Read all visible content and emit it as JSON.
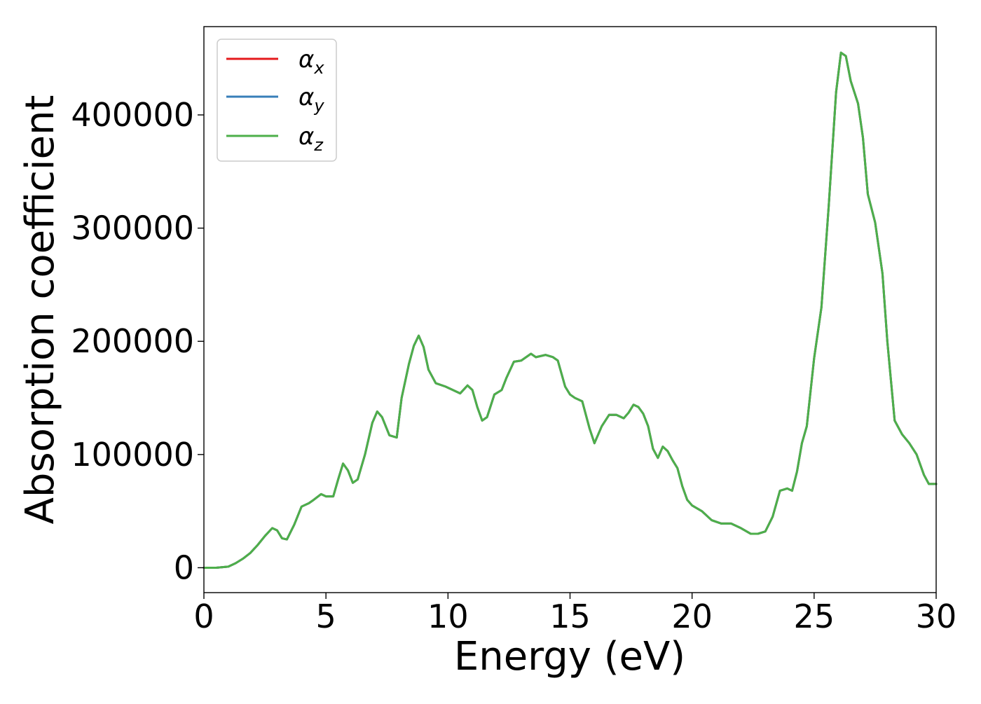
{
  "chart_data": {
    "type": "line",
    "title": "",
    "xlabel": "Energy (eV)",
    "ylabel": "Absorption coefficient",
    "xlim": [
      0,
      30
    ],
    "ylim": [
      -22000,
      478000
    ],
    "xticks": [
      0,
      5,
      10,
      15,
      20,
      25,
      30
    ],
    "yticks": [
      0,
      100000,
      200000,
      300000,
      400000
    ],
    "xtick_labels": [
      "0",
      "5",
      "10",
      "15",
      "20",
      "25",
      "30"
    ],
    "ytick_labels": [
      "0",
      "100000",
      "200000",
      "300000",
      "400000"
    ],
    "grid": false,
    "legend_position": "top-left",
    "x": [
      0,
      0.5,
      1.0,
      1.3,
      1.6,
      1.9,
      2.2,
      2.5,
      2.8,
      3.0,
      3.2,
      3.4,
      3.7,
      4.0,
      4.3,
      4.5,
      4.8,
      5.0,
      5.3,
      5.5,
      5.7,
      5.9,
      6.1,
      6.3,
      6.6,
      6.9,
      7.1,
      7.3,
      7.6,
      7.9,
      8.1,
      8.4,
      8.6,
      8.8,
      9.0,
      9.2,
      9.5,
      9.9,
      10.2,
      10.5,
      10.8,
      11.0,
      11.2,
      11.4,
      11.6,
      11.9,
      12.2,
      12.4,
      12.7,
      13.0,
      13.2,
      13.4,
      13.6,
      13.8,
      14.0,
      14.3,
      14.5,
      14.8,
      15.0,
      15.2,
      15.5,
      15.8,
      16.0,
      16.3,
      16.6,
      16.9,
      17.2,
      17.4,
      17.6,
      17.8,
      18.0,
      18.2,
      18.4,
      18.6,
      18.8,
      19.0,
      19.2,
      19.4,
      19.6,
      19.8,
      20.0,
      20.4,
      20.8,
      21.2,
      21.6,
      22.0,
      22.4,
      22.7,
      23.0,
      23.3,
      23.6,
      23.9,
      24.1,
      24.3,
      24.5,
      24.7,
      25.0,
      25.3,
      25.6,
      25.9,
      26.1,
      26.3,
      26.5,
      26.8,
      27.0,
      27.2,
      27.5,
      27.8,
      28.0,
      28.3,
      28.6,
      28.9,
      29.2,
      29.5,
      29.7,
      30.0
    ],
    "series": [
      {
        "name": "α_x",
        "color": "#e41a1c",
        "values": [
          0,
          0,
          1000,
          4000,
          8000,
          13000,
          20000,
          28000,
          35000,
          33000,
          26000,
          25000,
          38000,
          54000,
          57000,
          60000,
          65000,
          63000,
          63000,
          78000,
          92000,
          86000,
          75000,
          78000,
          100000,
          128000,
          138000,
          133000,
          117000,
          115000,
          150000,
          180000,
          196000,
          205000,
          195000,
          175000,
          163000,
          160000,
          157000,
          154000,
          161000,
          157000,
          142000,
          130000,
          133000,
          153000,
          157000,
          168000,
          182000,
          183000,
          186000,
          189000,
          186000,
          187000,
          188000,
          186000,
          183000,
          160000,
          153000,
          150000,
          147000,
          123000,
          110000,
          125000,
          135000,
          135000,
          132000,
          137000,
          144000,
          142000,
          136000,
          125000,
          105000,
          97000,
          107000,
          103000,
          95000,
          88000,
          72000,
          60000,
          55000,
          50000,
          42000,
          39000,
          39000,
          35000,
          30000,
          30000,
          32000,
          45000,
          68000,
          70000,
          68000,
          85000,
          110000,
          125000,
          185000,
          230000,
          320000,
          420000,
          455000,
          452000,
          430000,
          410000,
          380000,
          330000,
          305000,
          260000,
          200000,
          130000,
          118000,
          110000,
          100000,
          82000,
          74000,
          74000
        ]
      },
      {
        "name": "α_y",
        "color": "#377eb8",
        "values": [
          0,
          0,
          1000,
          4000,
          8000,
          13000,
          20000,
          28000,
          35000,
          33000,
          26000,
          25000,
          38000,
          54000,
          57000,
          60000,
          65000,
          63000,
          63000,
          78000,
          92000,
          86000,
          75000,
          78000,
          100000,
          128000,
          138000,
          133000,
          117000,
          115000,
          150000,
          180000,
          196000,
          205000,
          195000,
          175000,
          163000,
          160000,
          157000,
          154000,
          161000,
          157000,
          142000,
          130000,
          133000,
          153000,
          157000,
          168000,
          182000,
          183000,
          186000,
          189000,
          186000,
          187000,
          188000,
          186000,
          183000,
          160000,
          153000,
          150000,
          147000,
          123000,
          110000,
          125000,
          135000,
          135000,
          132000,
          137000,
          144000,
          142000,
          136000,
          125000,
          105000,
          97000,
          107000,
          103000,
          95000,
          88000,
          72000,
          60000,
          55000,
          50000,
          42000,
          39000,
          39000,
          35000,
          30000,
          30000,
          32000,
          45000,
          68000,
          70000,
          68000,
          85000,
          110000,
          125000,
          185000,
          230000,
          320000,
          420000,
          455000,
          452000,
          430000,
          410000,
          380000,
          330000,
          305000,
          260000,
          200000,
          130000,
          118000,
          110000,
          100000,
          82000,
          74000,
          74000
        ]
      },
      {
        "name": "α_z",
        "color": "#4daf4a",
        "values": [
          0,
          0,
          1000,
          4000,
          8000,
          13000,
          20000,
          28000,
          35000,
          33000,
          26000,
          25000,
          38000,
          54000,
          57000,
          60000,
          65000,
          63000,
          63000,
          78000,
          92000,
          86000,
          75000,
          78000,
          100000,
          128000,
          138000,
          133000,
          117000,
          115000,
          150000,
          180000,
          196000,
          205000,
          195000,
          175000,
          163000,
          160000,
          157000,
          154000,
          161000,
          157000,
          142000,
          130000,
          133000,
          153000,
          157000,
          168000,
          182000,
          183000,
          186000,
          189000,
          186000,
          187000,
          188000,
          186000,
          183000,
          160000,
          153000,
          150000,
          147000,
          123000,
          110000,
          125000,
          135000,
          135000,
          132000,
          137000,
          144000,
          142000,
          136000,
          125000,
          105000,
          97000,
          107000,
          103000,
          95000,
          88000,
          72000,
          60000,
          55000,
          50000,
          42000,
          39000,
          39000,
          35000,
          30000,
          30000,
          32000,
          45000,
          68000,
          70000,
          68000,
          85000,
          110000,
          125000,
          185000,
          230000,
          320000,
          420000,
          455000,
          452000,
          430000,
          410000,
          380000,
          330000,
          305000,
          260000,
          200000,
          130000,
          118000,
          110000,
          100000,
          82000,
          74000,
          74000
        ]
      }
    ],
    "legend": [
      {
        "symbol": "α",
        "subscript": "x",
        "color": "#e41a1c"
      },
      {
        "symbol": "α",
        "subscript": "y",
        "color": "#377eb8"
      },
      {
        "symbol": "α",
        "subscript": "z",
        "color": "#4daf4a"
      }
    ]
  }
}
